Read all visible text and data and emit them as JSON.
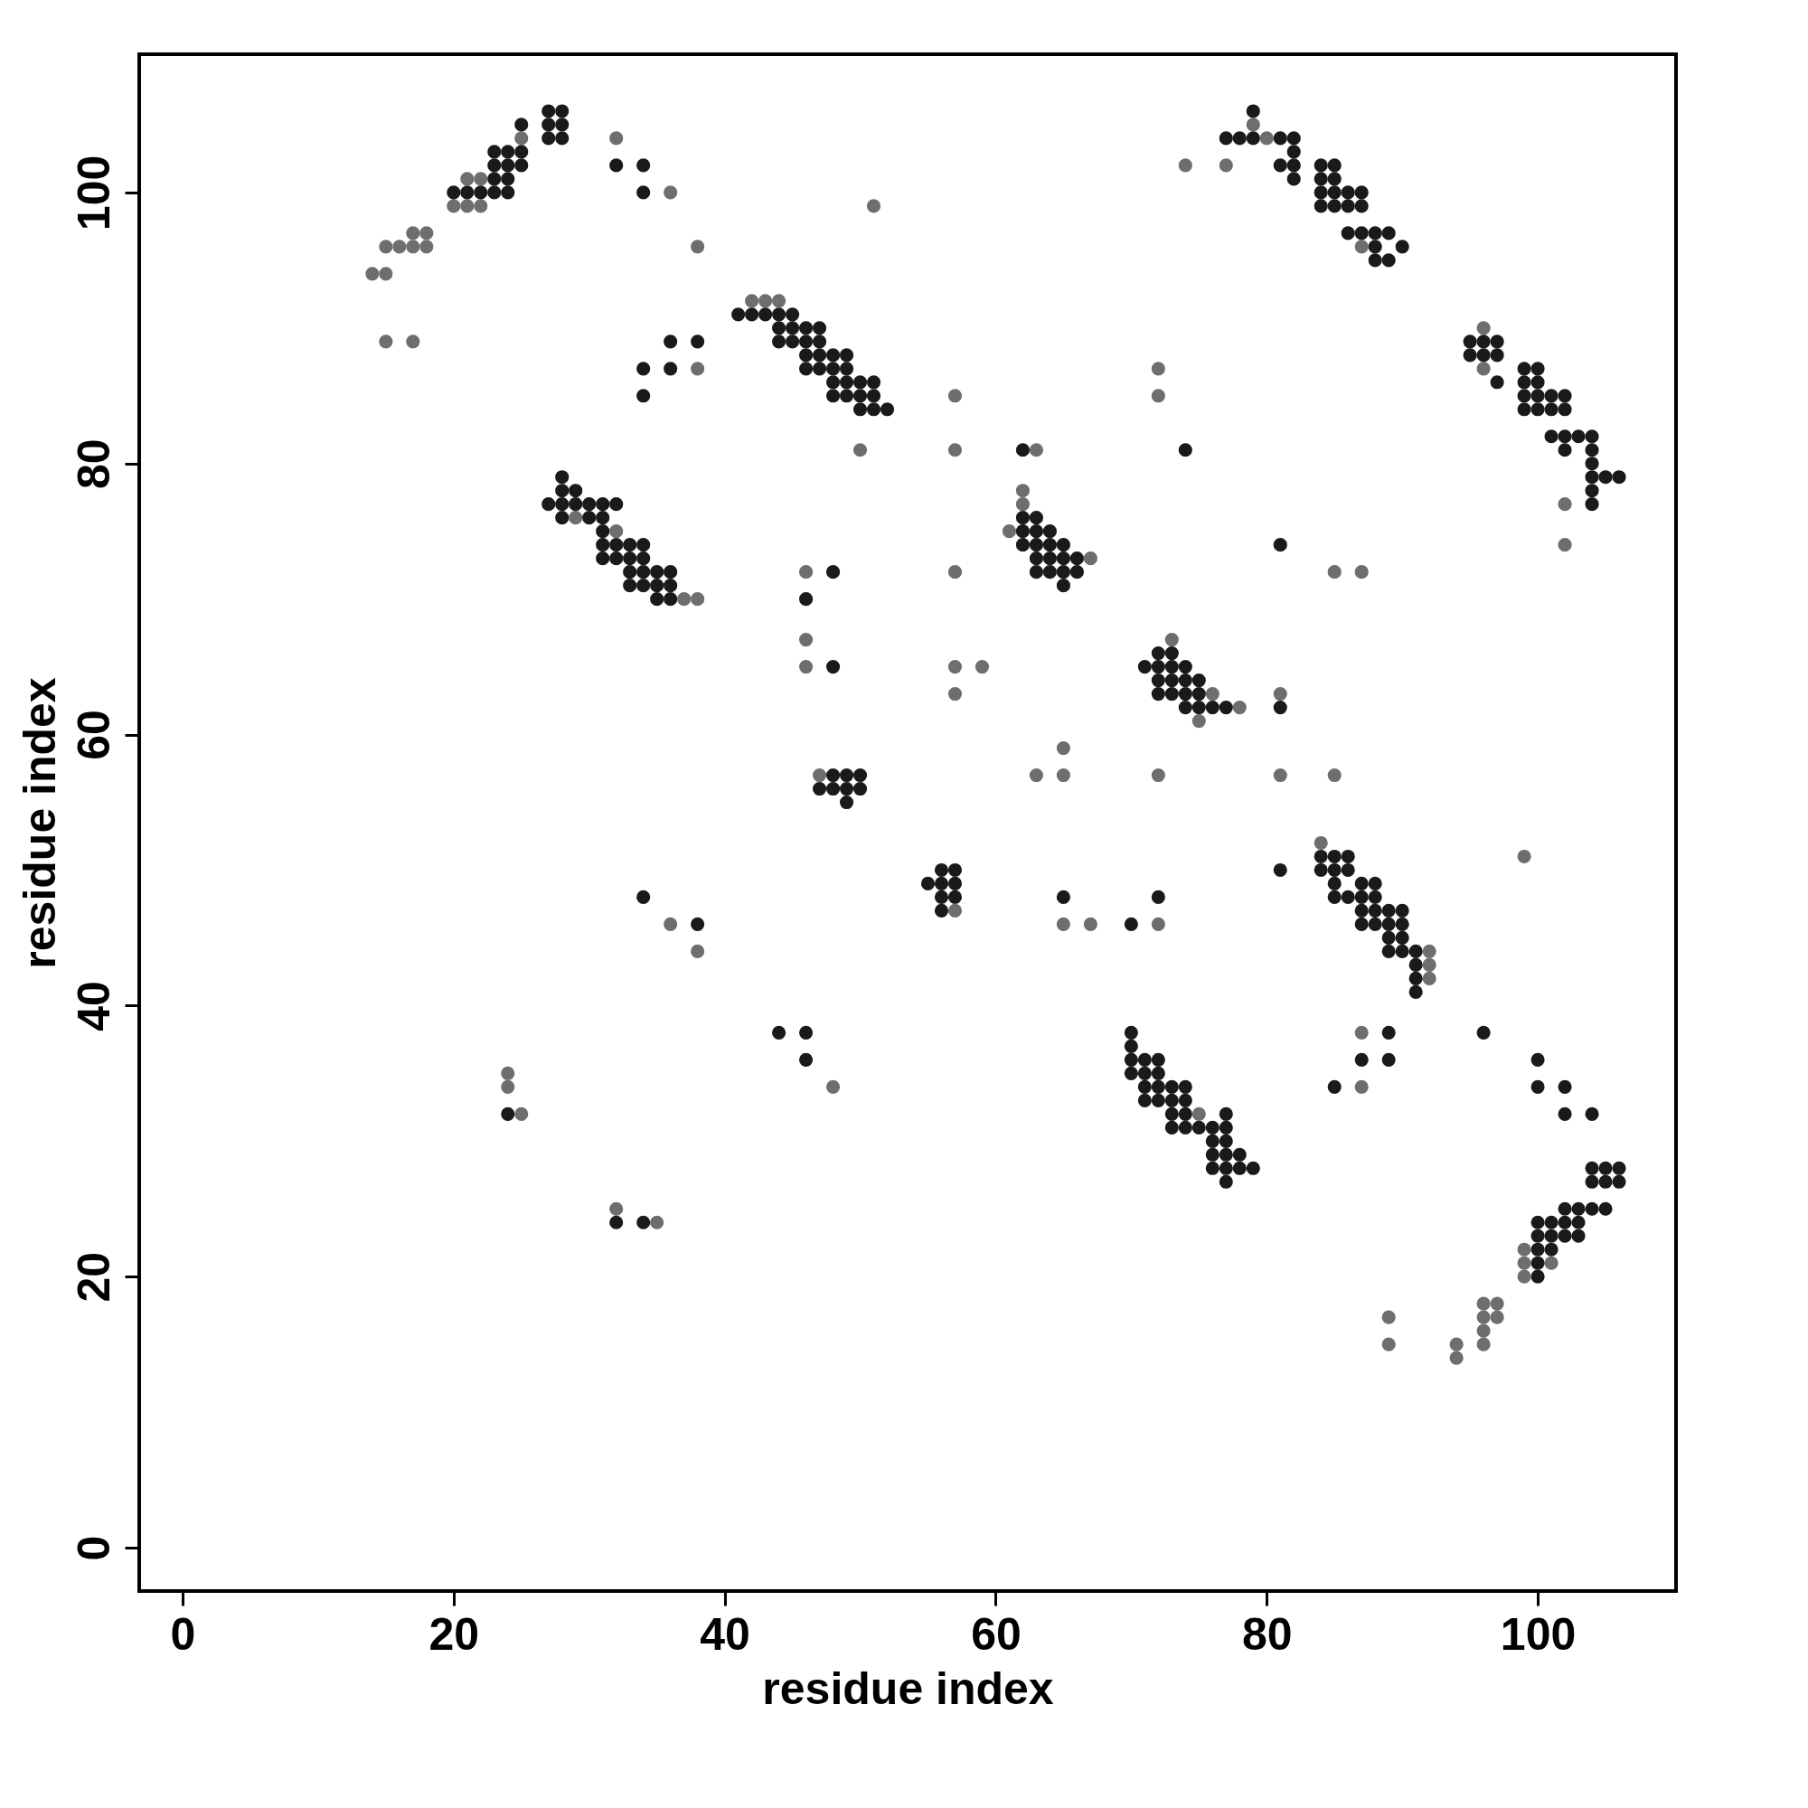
{
  "chart_data": {
    "type": "scatter",
    "xlabel": "residue index",
    "ylabel": "residue index",
    "xlim": [
      -3.2,
      110.2
    ],
    "ylim": [
      -3.2,
      110.2
    ],
    "xticks": [
      0,
      20,
      40,
      60,
      80,
      100
    ],
    "yticks": [
      0,
      20,
      40,
      60,
      80,
      100
    ],
    "grid": false,
    "legend": false,
    "marker": "circle",
    "series": [
      {
        "color": "#6e6e6e",
        "x": [
          14,
          15,
          15,
          16,
          17,
          18,
          17,
          18,
          15,
          17,
          20,
          21,
          22,
          21,
          22,
          25,
          32,
          36,
          38,
          51,
          38,
          42,
          43,
          44,
          50,
          29,
          32,
          37,
          38,
          46,
          46,
          46,
          47,
          57,
          57,
          57,
          57,
          59,
          57,
          57,
          36,
          38,
          48,
          24,
          24,
          25,
          32,
          35,
          63,
          62,
          62,
          61,
          67,
          63,
          65,
          65,
          65,
          67,
          72,
          72,
          73,
          76,
          75,
          78,
          72,
          72,
          74,
          77,
          80,
          79,
          87,
          81,
          81,
          85,
          85,
          87,
          84,
          92,
          92,
          92,
          87,
          87,
          75,
          99,
          96,
          96,
          102,
          102,
          99,
          99,
          99,
          101,
          96,
          97,
          96,
          97,
          96,
          96,
          94,
          94,
          89,
          89
        ],
        "values": [
          94,
          94,
          96,
          96,
          96,
          96,
          97,
          97,
          89,
          89,
          99,
          99,
          99,
          101,
          101,
          104,
          104,
          100,
          96,
          99,
          87,
          92,
          92,
          92,
          81,
          76,
          75,
          70,
          70,
          72,
          67,
          65,
          57,
          85,
          81,
          72,
          65,
          65,
          63,
          47,
          46,
          44,
          34,
          35,
          34,
          32,
          25,
          24,
          81,
          78,
          77,
          75,
          73,
          57,
          59,
          57,
          46,
          46,
          46,
          57,
          67,
          63,
          61,
          62,
          87,
          85,
          102,
          102,
          104,
          105,
          96,
          63,
          57,
          57,
          72,
          72,
          52,
          44,
          43,
          42,
          38,
          34,
          32,
          51,
          90,
          87,
          77,
          74,
          22,
          21,
          20,
          21,
          18,
          18,
          17,
          17,
          16,
          15,
          15,
          14,
          17,
          15
        ]
      },
      {
        "color": "#1a1a1a",
        "x": [
          20,
          21,
          22,
          23,
          24,
          23,
          24,
          23,
          24,
          25,
          23,
          24,
          25,
          25,
          27,
          28,
          27,
          28,
          27,
          28,
          32,
          34,
          34,
          34,
          34,
          36,
          36,
          38,
          41,
          42,
          43,
          44,
          45,
          44,
          45,
          46,
          47,
          44,
          45,
          46,
          47,
          46,
          47,
          48,
          49,
          46,
          47,
          48,
          49,
          48,
          49,
          50,
          51,
          48,
          49,
          50,
          51,
          50,
          51,
          52,
          27,
          28,
          28,
          28,
          29,
          29,
          30,
          31,
          32,
          28,
          30,
          31,
          31,
          31,
          32,
          33,
          34,
          31,
          32,
          33,
          34,
          33,
          34,
          35,
          36,
          33,
          34,
          35,
          36,
          35,
          36,
          48,
          46,
          48,
          47,
          48,
          48,
          49,
          50,
          49,
          50,
          49,
          55,
          56,
          56,
          57,
          57,
          56,
          57,
          56,
          34,
          38,
          44,
          46,
          46,
          24,
          32,
          34,
          62,
          62,
          63,
          62,
          63,
          64,
          62,
          63,
          64,
          65,
          63,
          64,
          65,
          66,
          63,
          64,
          65,
          66,
          65,
          65,
          70,
          72,
          71,
          72,
          72,
          73,
          73,
          74,
          72,
          73,
          74,
          75,
          72,
          73,
          74,
          75,
          74,
          75,
          76,
          77,
          74,
          77,
          78,
          79,
          79,
          81,
          82,
          81,
          82,
          82,
          82,
          84,
          85,
          84,
          85,
          84,
          85,
          86,
          87,
          84,
          85,
          86,
          87,
          86,
          87,
          88,
          89,
          88,
          90,
          88,
          89,
          81,
          81,
          81,
          84,
          85,
          86,
          84,
          85,
          86,
          85,
          87,
          88,
          85,
          86,
          87,
          88,
          87,
          88,
          89,
          90,
          87,
          88,
          89,
          90,
          89,
          90,
          89,
          90,
          91,
          91,
          91,
          91,
          89,
          87,
          89,
          85,
          96,
          70,
          70,
          70,
          71,
          72,
          70,
          71,
          72,
          71,
          72,
          73,
          74,
          71,
          72,
          73,
          74,
          73,
          74,
          77,
          73,
          74,
          75,
          76,
          77,
          76,
          77,
          76,
          77,
          78,
          76,
          77,
          78,
          79,
          77,
          95,
          96,
          97,
          95,
          96,
          97,
          97,
          99,
          100,
          99,
          100,
          99,
          100,
          101,
          102,
          99,
          100,
          101,
          102,
          101,
          102,
          103,
          104,
          102,
          104,
          104,
          104,
          105,
          106,
          104,
          104,
          100,
          100,
          102,
          102,
          104,
          100,
          100,
          101,
          100,
          100,
          101,
          102,
          103,
          100,
          101,
          102,
          102,
          103,
          103,
          104,
          105,
          104,
          105,
          106,
          104,
          105,
          106
        ],
        "values": [
          100,
          100,
          100,
          100,
          100,
          101,
          101,
          102,
          102,
          102,
          103,
          103,
          103,
          105,
          104,
          104,
          105,
          105,
          106,
          106,
          102,
          102,
          100,
          87,
          85,
          89,
          87,
          89,
          91,
          91,
          91,
          91,
          91,
          90,
          90,
          90,
          90,
          89,
          89,
          89,
          89,
          88,
          88,
          88,
          88,
          87,
          87,
          87,
          87,
          86,
          86,
          86,
          86,
          85,
          85,
          85,
          85,
          84,
          84,
          84,
          77,
          77,
          78,
          79,
          77,
          78,
          77,
          77,
          77,
          76,
          76,
          76,
          75,
          74,
          74,
          74,
          74,
          73,
          73,
          73,
          73,
          72,
          72,
          72,
          72,
          71,
          71,
          71,
          71,
          70,
          70,
          72,
          70,
          65,
          56,
          56,
          57,
          57,
          57,
          56,
          56,
          55,
          49,
          49,
          50,
          50,
          49,
          48,
          48,
          47,
          48,
          46,
          38,
          38,
          36,
          32,
          24,
          24,
          81,
          76,
          76,
          75,
          75,
          75,
          74,
          74,
          74,
          74,
          73,
          73,
          73,
          73,
          72,
          72,
          72,
          72,
          71,
          48,
          46,
          48,
          65,
          65,
          66,
          66,
          65,
          65,
          64,
          64,
          64,
          64,
          63,
          63,
          63,
          63,
          62,
          62,
          62,
          62,
          81,
          104,
          104,
          104,
          106,
          104,
          104,
          102,
          103,
          102,
          101,
          102,
          102,
          101,
          101,
          100,
          100,
          100,
          100,
          99,
          99,
          99,
          99,
          97,
          97,
          97,
          97,
          96,
          96,
          95,
          95,
          74,
          62,
          50,
          51,
          51,
          51,
          50,
          50,
          50,
          49,
          49,
          49,
          48,
          48,
          48,
          48,
          47,
          47,
          47,
          47,
          46,
          46,
          46,
          46,
          45,
          45,
          44,
          44,
          44,
          43,
          42,
          41,
          38,
          36,
          36,
          34,
          38,
          38,
          37,
          36,
          36,
          36,
          35,
          35,
          35,
          34,
          34,
          34,
          34,
          33,
          33,
          33,
          33,
          32,
          32,
          32,
          31,
          31,
          31,
          31,
          31,
          30,
          30,
          29,
          29,
          29,
          28,
          28,
          28,
          28,
          27,
          89,
          89,
          89,
          88,
          88,
          88,
          86,
          87,
          87,
          86,
          86,
          85,
          85,
          85,
          85,
          84,
          84,
          84,
          84,
          82,
          82,
          82,
          82,
          81,
          81,
          80,
          79,
          79,
          79,
          78,
          77,
          36,
          34,
          34,
          32,
          32,
          20,
          21,
          22,
          22,
          23,
          23,
          23,
          23,
          24,
          24,
          24,
          25,
          25,
          24,
          25,
          25,
          27,
          27,
          27,
          28,
          28,
          28
        ]
      }
    ]
  }
}
